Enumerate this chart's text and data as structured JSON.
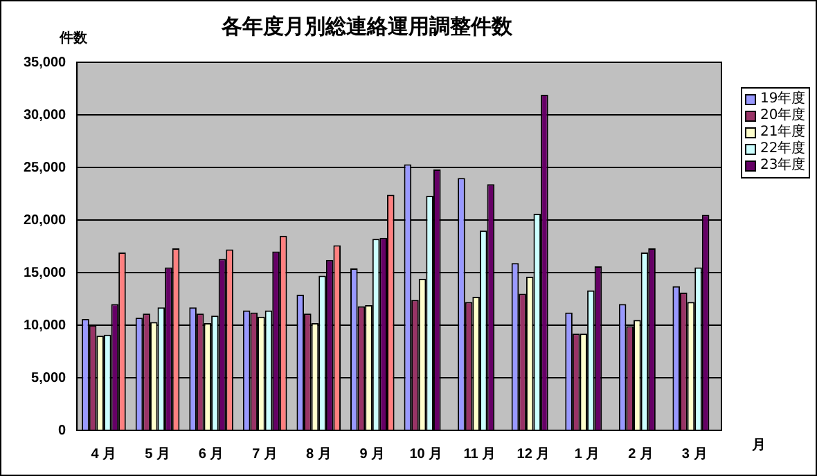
{
  "chart_data": {
    "type": "bar",
    "title": "各年度月別総連絡運用調整件数",
    "ylabel": "件数",
    "xlabel": "月",
    "categories": [
      "4 月",
      "5 月",
      "6 月",
      "7 月",
      "8 月",
      "9 月",
      "10 月",
      "11 月",
      "12 月",
      "1 月",
      "2 月",
      "3 月"
    ],
    "series": [
      {
        "name": "19年度",
        "color": "#9999ff",
        "values": [
          10600,
          10700,
          11700,
          11400,
          12900,
          15400,
          25300,
          24000,
          15900,
          11200,
          12000,
          13700
        ]
      },
      {
        "name": "20年度",
        "color": "#993366",
        "values": [
          10000,
          11100,
          11100,
          11200,
          11100,
          11800,
          12400,
          12200,
          13000,
          9200,
          9900,
          13100
        ]
      },
      {
        "name": "21年度",
        "color": "#ffffcc",
        "values": [
          9000,
          10300,
          10200,
          10800,
          10200,
          11900,
          14400,
          12700,
          14600,
          9200,
          10500,
          12200
        ]
      },
      {
        "name": "22年度",
        "color": "#ccffff",
        "values": [
          9100,
          11700,
          10900,
          11400,
          14700,
          18200,
          22300,
          19000,
          20600,
          13300,
          16900,
          15500
        ]
      },
      {
        "name": "23年度",
        "color": "#660066",
        "values": [
          12000,
          15500,
          16300,
          17000,
          16200,
          18300,
          24800,
          23400,
          31900,
          15600,
          17300,
          20500
        ]
      },
      {
        "color": "#ff8080",
        "values": [
          16900,
          17300,
          17200,
          18500,
          17600,
          22400,
          null,
          null,
          null,
          null,
          null,
          null
        ]
      }
    ],
    "ylim": [
      0,
      35000
    ],
    "yticks": [
      0,
      {
        "value": 5000,
        "label": "5,000"
      },
      {
        "value": 10000,
        "label": "10,000"
      },
      {
        "value": 15000,
        "label": "15,000"
      },
      {
        "value": 20000,
        "label": "20,000"
      },
      {
        "value": 25000,
        "label": "25,000"
      },
      {
        "value": 30000,
        "label": "30,000"
      },
      {
        "value": 35000,
        "label": "35,000"
      }
    ],
    "grid": "y",
    "legend": "top right"
  }
}
